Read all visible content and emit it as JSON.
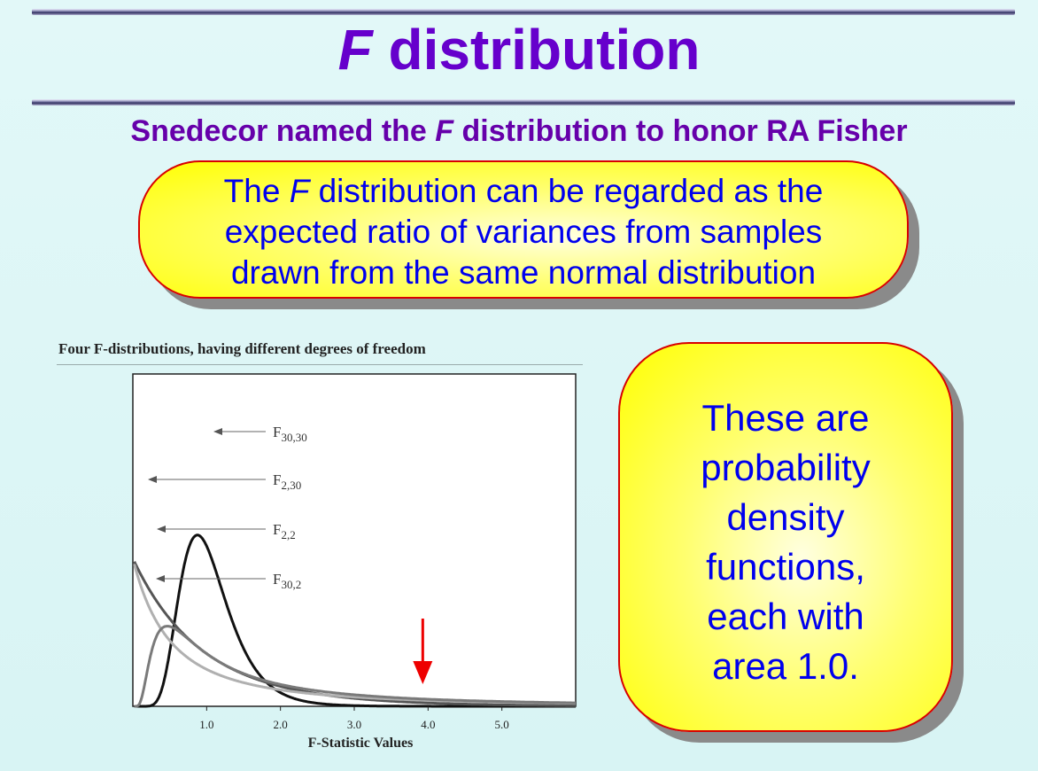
{
  "slide": {
    "title_italic": "F",
    "title_rest": " distribution",
    "subtitle_pre": "Snedecor named the ",
    "subtitle_italic": "F",
    "subtitle_post": " distribution to honor RA Fisher",
    "callout1": {
      "pre": "The ",
      "italic": "F",
      "post": " distribution can be regarded as the",
      "line2": "expected ratio of variances from samples",
      "line3": "drawn from the same normal distribution"
    },
    "callout2_lines": [
      "These are",
      "probability",
      "density",
      "functions,",
      "each with",
      "area 1.0."
    ]
  },
  "colors": {
    "title": "#6600cc",
    "callout_text": "#0000ee",
    "callout_border": "#d80000",
    "callout_fill": "#ffff00",
    "arrow": "#ee0000"
  },
  "chart_data": {
    "type": "line",
    "title": "Four F-distributions, having different degrees of freedom",
    "xlabel": "F-Statistic Values",
    "ylabel": "",
    "xlim": [
      0,
      6
    ],
    "x_ticks": [
      "1.0",
      "2.0",
      "3.0",
      "4.0",
      "5.0"
    ],
    "series": [
      {
        "name": "F30,30",
        "label_main": "F",
        "label_sub": "30,30",
        "d1": 30,
        "d2": 30,
        "color": "#111111"
      },
      {
        "name": "F2,30",
        "label_main": "F",
        "label_sub": "2,30",
        "d1": 2,
        "d2": 30,
        "color": "#555555"
      },
      {
        "name": "F2,2",
        "label_main": "F",
        "label_sub": "2,2",
        "d1": 2,
        "d2": 2,
        "color": "#b0b0b0"
      },
      {
        "name": "F30,2",
        "label_main": "F",
        "label_sub": "30,2",
        "d1": 30,
        "d2": 2,
        "color": "#7a7a7a"
      }
    ],
    "annotation": {
      "type": "arrow",
      "x": 4.0,
      "color": "#ee0000"
    }
  }
}
